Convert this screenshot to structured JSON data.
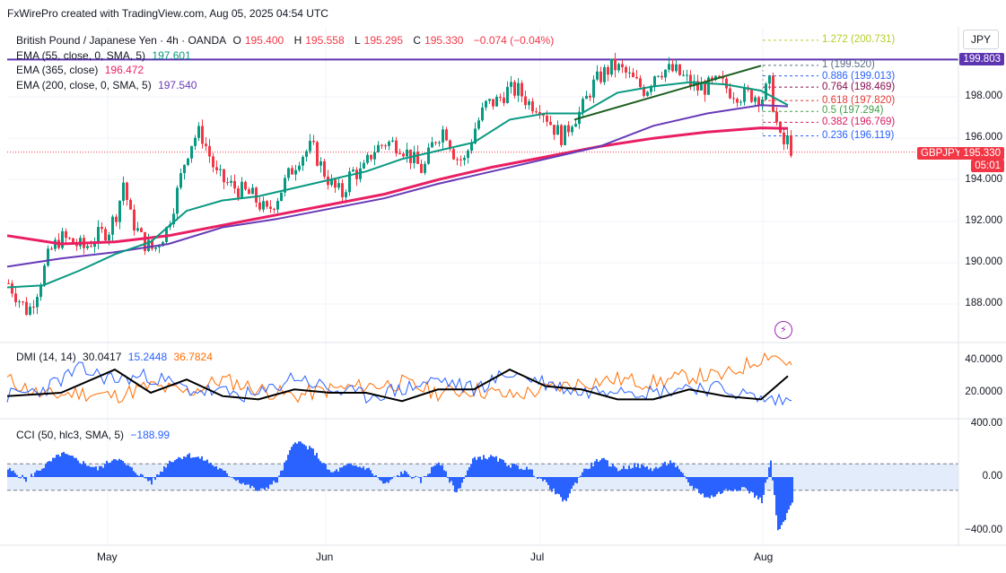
{
  "header": {
    "credit": "FxWirePro created with TradingView.com, Aug 05, 2025 04:54 UTC"
  },
  "currency_button": "JPY",
  "symbol_line": {
    "name": "British Pound / Japanese Yen · 4h · OANDA",
    "o_label": "O",
    "o": "195.400",
    "h_label": "H",
    "h": "195.558",
    "l_label": "L",
    "l": "195.295",
    "c_label": "C",
    "c": "195.330",
    "change": "−0.074 (−0.04%)"
  },
  "indicators": [
    {
      "label": "EMA (55, close, 0, SMA, 5)",
      "value": "197.601",
      "color": "#089981"
    },
    {
      "label": "EMA (365, close)",
      "value": "196.472",
      "color": "#e91e63"
    },
    {
      "label": "EMA (200, close, 0, SMA, 5)",
      "value": "197.540",
      "color": "#673ab7"
    }
  ],
  "dmi": {
    "label": "DMI (14, 14)",
    "adx": "30.0417",
    "plus_di": "15.2448",
    "minus_di": "36.7824"
  },
  "cci": {
    "label": "CCI (50, hlc3, SMA, 5)",
    "value": "−188.99"
  },
  "price_tags": {
    "resistance": "199.803",
    "symbol": "GBPJPY",
    "last": "195.330",
    "countdown": "05:01"
  },
  "fib_levels": [
    {
      "ratio": "1.272",
      "price": "(200.731)",
      "value": 200.731,
      "color": "#b6cc2a"
    },
    {
      "ratio": "1",
      "price": "(199.520)",
      "value": 199.52,
      "color": "#5d6f86"
    },
    {
      "ratio": "0.886",
      "price": "(199.013)",
      "value": 199.013,
      "color": "#2962ff"
    },
    {
      "ratio": "0.764",
      "price": "(198.469)",
      "value": 198.469,
      "color": "#880e4f"
    },
    {
      "ratio": "0.618",
      "price": "(197.820)",
      "value": 197.82,
      "color": "#e53935"
    },
    {
      "ratio": "0.5",
      "price": "(197.294)",
      "value": 197.294,
      "color": "#43a047"
    },
    {
      "ratio": "0.382",
      "price": "(196.769)",
      "value": 196.769,
      "color": "#d81b60"
    },
    {
      "ratio": "0.236",
      "price": "(196.119)",
      "value": 196.119,
      "color": "#2962ff"
    }
  ],
  "colors": {
    "up": "#089981",
    "down": "#f23645",
    "ema55": "#089981",
    "ema365": "#e91e63",
    "ema200": "#673ab7",
    "resistance": "#5e35b1",
    "trendline": "#1b5e20",
    "adx": "#000000",
    "plus_di": "#2962ff",
    "minus_di": "#ff6d00",
    "cci": "#2962ff",
    "cci_band": "#2962ff"
  },
  "chart_data": {
    "type": "candlestick",
    "timeframe": "4h",
    "x_labels": [
      "May",
      "Jun",
      "Jul",
      "Aug"
    ],
    "price_axis": {
      "ticks": [
        "188.000",
        "190.000",
        "192.000",
        "194.000",
        "196.000",
        "198.000"
      ],
      "ylim": [
        186.5,
        201.8
      ]
    },
    "dmi_axis": {
      "ticks": [
        "20.0000",
        "40.0000"
      ],
      "ylim": [
        0,
        55
      ]
    },
    "cci_axis": {
      "ticks": [
        "400.00",
        "0.00",
        "−400.00"
      ],
      "ylim": [
        -520,
        450
      ]
    },
    "horizontal_resistance": 199.803,
    "trendline": {
      "from": {
        "date": "2025-07-01",
        "value": 196.9
      },
      "to": {
        "date": "2025-07-28",
        "value": 199.5
      }
    },
    "price_path": [
      [
        0,
        189.0
      ],
      [
        12,
        188.2
      ],
      [
        22,
        187.6
      ],
      [
        34,
        188.9
      ],
      [
        46,
        190.5
      ],
      [
        58,
        191.2
      ],
      [
        70,
        191.0
      ],
      [
        84,
        190.7
      ],
      [
        100,
        191.3
      ],
      [
        112,
        191.6
      ],
      [
        122,
        192.6
      ],
      [
        128,
        193.9
      ],
      [
        136,
        192.2
      ],
      [
        150,
        191.0
      ],
      [
        162,
        190.6
      ],
      [
        176,
        191.6
      ],
      [
        188,
        193.4
      ],
      [
        198,
        195.2
      ],
      [
        206,
        196.0
      ],
      [
        214,
        196.3
      ],
      [
        222,
        195.4
      ],
      [
        232,
        194.2
      ],
      [
        244,
        193.8
      ],
      [
        258,
        193.5
      ],
      [
        272,
        193.2
      ],
      [
        288,
        192.4
      ],
      [
        300,
        193.2
      ],
      [
        312,
        194.2
      ],
      [
        324,
        195.1
      ],
      [
        338,
        195.6
      ],
      [
        350,
        194.5
      ],
      [
        362,
        193.6
      ],
      [
        372,
        193.3
      ],
      [
        382,
        194.4
      ],
      [
        394,
        194.3
      ],
      [
        406,
        195.4
      ],
      [
        420,
        195.8
      ],
      [
        436,
        195.7
      ],
      [
        450,
        195.0
      ],
      [
        462,
        194.4
      ],
      [
        474,
        195.9
      ],
      [
        486,
        196.5
      ],
      [
        498,
        195.1
      ],
      [
        508,
        194.9
      ],
      [
        520,
        196.5
      ],
      [
        532,
        197.6
      ],
      [
        544,
        197.8
      ],
      [
        556,
        198.3
      ],
      [
        568,
        198.3
      ],
      [
        580,
        197.7
      ],
      [
        592,
        197.6
      ],
      [
        606,
        196.6
      ],
      [
        618,
        196.0
      ],
      [
        628,
        196.9
      ],
      [
        638,
        197.3
      ],
      [
        650,
        198.5
      ],
      [
        662,
        199.1
      ],
      [
        674,
        199.5
      ],
      [
        686,
        199.2
      ],
      [
        698,
        198.7
      ],
      [
        710,
        198.3
      ],
      [
        722,
        199.3
      ],
      [
        734,
        199.3
      ],
      [
        744,
        199.2
      ],
      [
        756,
        198.8
      ],
      [
        768,
        198.4
      ],
      [
        780,
        198.5
      ],
      [
        792,
        198.7
      ],
      [
        804,
        198.3
      ],
      [
        816,
        198.1
      ],
      [
        828,
        198.1
      ],
      [
        840,
        198.0
      ],
      [
        848,
        198.6
      ],
      [
        854,
        197.2
      ],
      [
        858,
        196.2
      ],
      [
        862,
        195.6
      ],
      [
        868,
        195.9
      ],
      [
        874,
        195.33
      ]
    ],
    "ema55_path": [
      [
        0,
        188.8
      ],
      [
        40,
        188.9
      ],
      [
        80,
        189.6
      ],
      [
        120,
        190.4
      ],
      [
        160,
        191.0
      ],
      [
        200,
        192.5
      ],
      [
        240,
        193.0
      ],
      [
        280,
        193.2
      ],
      [
        320,
        193.6
      ],
      [
        360,
        194.0
      ],
      [
        400,
        194.4
      ],
      [
        440,
        195.0
      ],
      [
        480,
        195.4
      ],
      [
        520,
        195.8
      ],
      [
        560,
        196.9
      ],
      [
        600,
        197.2
      ],
      [
        640,
        197.2
      ],
      [
        680,
        198.2
      ],
      [
        720,
        198.5
      ],
      [
        760,
        198.7
      ],
      [
        800,
        198.6
      ],
      [
        840,
        198.3
      ],
      [
        870,
        197.601
      ]
    ],
    "ema200_path": [
      [
        0,
        189.8
      ],
      [
        60,
        190.2
      ],
      [
        120,
        190.5
      ],
      [
        180,
        190.9
      ],
      [
        240,
        191.7
      ],
      [
        300,
        192.1
      ],
      [
        360,
        192.6
      ],
      [
        420,
        193.1
      ],
      [
        480,
        193.8
      ],
      [
        540,
        194.4
      ],
      [
        600,
        195.0
      ],
      [
        660,
        195.6
      ],
      [
        720,
        196.6
      ],
      [
        780,
        197.2
      ],
      [
        840,
        197.6
      ],
      [
        870,
        197.54
      ]
    ],
    "ema365_path": [
      [
        0,
        191.3
      ],
      [
        60,
        190.9
      ],
      [
        120,
        191.0
      ],
      [
        180,
        191.3
      ],
      [
        240,
        191.8
      ],
      [
        300,
        192.3
      ],
      [
        360,
        192.8
      ],
      [
        420,
        193.3
      ],
      [
        480,
        194.0
      ],
      [
        540,
        194.6
      ],
      [
        600,
        195.1
      ],
      [
        660,
        195.6
      ],
      [
        720,
        196.0
      ],
      [
        780,
        196.3
      ],
      [
        840,
        196.5
      ],
      [
        870,
        196.472
      ]
    ],
    "dmi_series": {
      "adx": [
        [
          0,
          18
        ],
        [
          60,
          20
        ],
        [
          120,
          34
        ],
        [
          160,
          20
        ],
        [
          200,
          28
        ],
        [
          240,
          18
        ],
        [
          280,
          16
        ],
        [
          320,
          22
        ],
        [
          360,
          20
        ],
        [
          400,
          20
        ],
        [
          440,
          15
        ],
        [
          480,
          22
        ],
        [
          520,
          22
        ],
        [
          560,
          34
        ],
        [
          600,
          24
        ],
        [
          640,
          22
        ],
        [
          680,
          16
        ],
        [
          720,
          16
        ],
        [
          760,
          22
        ],
        [
          800,
          18
        ],
        [
          840,
          16
        ],
        [
          870,
          30.0417
        ]
      ],
      "plus_di": [
        [
          0,
          18
        ],
        [
          40,
          22
        ],
        [
          80,
          34
        ],
        [
          120,
          28
        ],
        [
          160,
          30
        ],
        [
          200,
          22
        ],
        [
          240,
          20
        ],
        [
          280,
          18
        ],
        [
          320,
          30
        ],
        [
          360,
          22
        ],
        [
          400,
          18
        ],
        [
          440,
          22
        ],
        [
          480,
          28
        ],
        [
          520,
          22
        ],
        [
          560,
          32
        ],
        [
          600,
          26
        ],
        [
          640,
          20
        ],
        [
          680,
          24
        ],
        [
          720,
          20
        ],
        [
          760,
          24
        ],
        [
          800,
          22
        ],
        [
          840,
          16
        ],
        [
          874,
          15.2448
        ]
      ],
      "minus_di": [
        [
          0,
          28
        ],
        [
          40,
          18
        ],
        [
          80,
          20
        ],
        [
          120,
          18
        ],
        [
          160,
          24
        ],
        [
          200,
          20
        ],
        [
          240,
          28
        ],
        [
          280,
          22
        ],
        [
          320,
          18
        ],
        [
          360,
          22
        ],
        [
          400,
          24
        ],
        [
          440,
          26
        ],
        [
          480,
          20
        ],
        [
          520,
          22
        ],
        [
          560,
          18
        ],
        [
          600,
          22
        ],
        [
          640,
          26
        ],
        [
          680,
          28
        ],
        [
          720,
          26
        ],
        [
          760,
          30
        ],
        [
          800,
          30
        ],
        [
          850,
          44
        ],
        [
          874,
          36.7824
        ]
      ]
    },
    "cci_path": [
      [
        0,
        60
      ],
      [
        20,
        -20
      ],
      [
        40,
        80
      ],
      [
        60,
        180
      ],
      [
        80,
        120
      ],
      [
        100,
        60
      ],
      [
        120,
        150
      ],
      [
        140,
        50
      ],
      [
        160,
        -40
      ],
      [
        180,
        120
      ],
      [
        200,
        170
      ],
      [
        220,
        130
      ],
      [
        240,
        40
      ],
      [
        260,
        -40
      ],
      [
        280,
        -110
      ],
      [
        300,
        -30
      ],
      [
        320,
        280
      ],
      [
        340,
        200
      ],
      [
        360,
        30
      ],
      [
        380,
        90
      ],
      [
        400,
        70
      ],
      [
        420,
        -60
      ],
      [
        440,
        40
      ],
      [
        460,
        -30
      ],
      [
        480,
        120
      ],
      [
        500,
        -120
      ],
      [
        520,
        150
      ],
      [
        540,
        150
      ],
      [
        560,
        90
      ],
      [
        580,
        60
      ],
      [
        600,
        -50
      ],
      [
        620,
        -190
      ],
      [
        640,
        40
      ],
      [
        660,
        140
      ],
      [
        680,
        60
      ],
      [
        700,
        90
      ],
      [
        720,
        60
      ],
      [
        740,
        120
      ],
      [
        760,
        -60
      ],
      [
        780,
        -160
      ],
      [
        800,
        -100
      ],
      [
        820,
        -80
      ],
      [
        840,
        -180
      ],
      [
        850,
        120
      ],
      [
        858,
        -420
      ],
      [
        866,
        -320
      ],
      [
        874,
        -188.99
      ]
    ]
  }
}
